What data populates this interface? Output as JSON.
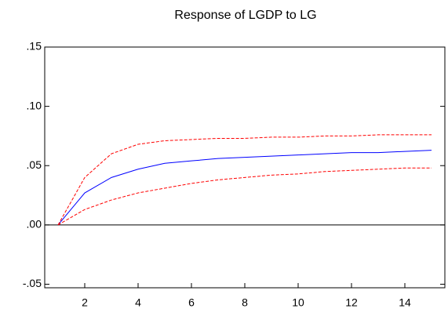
{
  "chart_data": {
    "type": "line",
    "title": "Response of LGDP to LG",
    "x": [
      1,
      2,
      3,
      4,
      5,
      6,
      7,
      8,
      9,
      10,
      11,
      12,
      13,
      14,
      15
    ],
    "series": [
      {
        "color": "#0000ff",
        "dash": false,
        "values": [
          0,
          0.027,
          0.04,
          0.047,
          0.052,
          0.054,
          0.056,
          0.057,
          0.058,
          0.059,
          0.06,
          0.061,
          0.061,
          0.062,
          0.063
        ]
      },
      {
        "color": "#ff0000",
        "dash": true,
        "values": [
          0,
          0.04,
          0.06,
          0.068,
          0.071,
          0.072,
          0.073,
          0.073,
          0.074,
          0.074,
          0.075,
          0.075,
          0.076,
          0.076,
          0.076
        ]
      },
      {
        "color": "#ff0000",
        "dash": true,
        "values": [
          0,
          0.013,
          0.021,
          0.027,
          0.031,
          0.035,
          0.038,
          0.04,
          0.042,
          0.043,
          0.045,
          0.046,
          0.047,
          0.048,
          0.048
        ]
      }
    ],
    "xlim": [
      0.5,
      15.5
    ],
    "xticks": [
      2,
      4,
      6,
      8,
      10,
      12,
      14
    ],
    "ylim": [
      -0.053,
      0.15
    ],
    "yticks": [
      {
        "value": 0.15,
        "label": ".15"
      },
      {
        "value": 0.1,
        "label": ".10"
      },
      {
        "value": 0.05,
        "label": ".05"
      },
      {
        "value": 0,
        "label": ".00"
      },
      {
        "value": -0.05,
        "label": "-.05"
      }
    ],
    "zero_line": true
  }
}
